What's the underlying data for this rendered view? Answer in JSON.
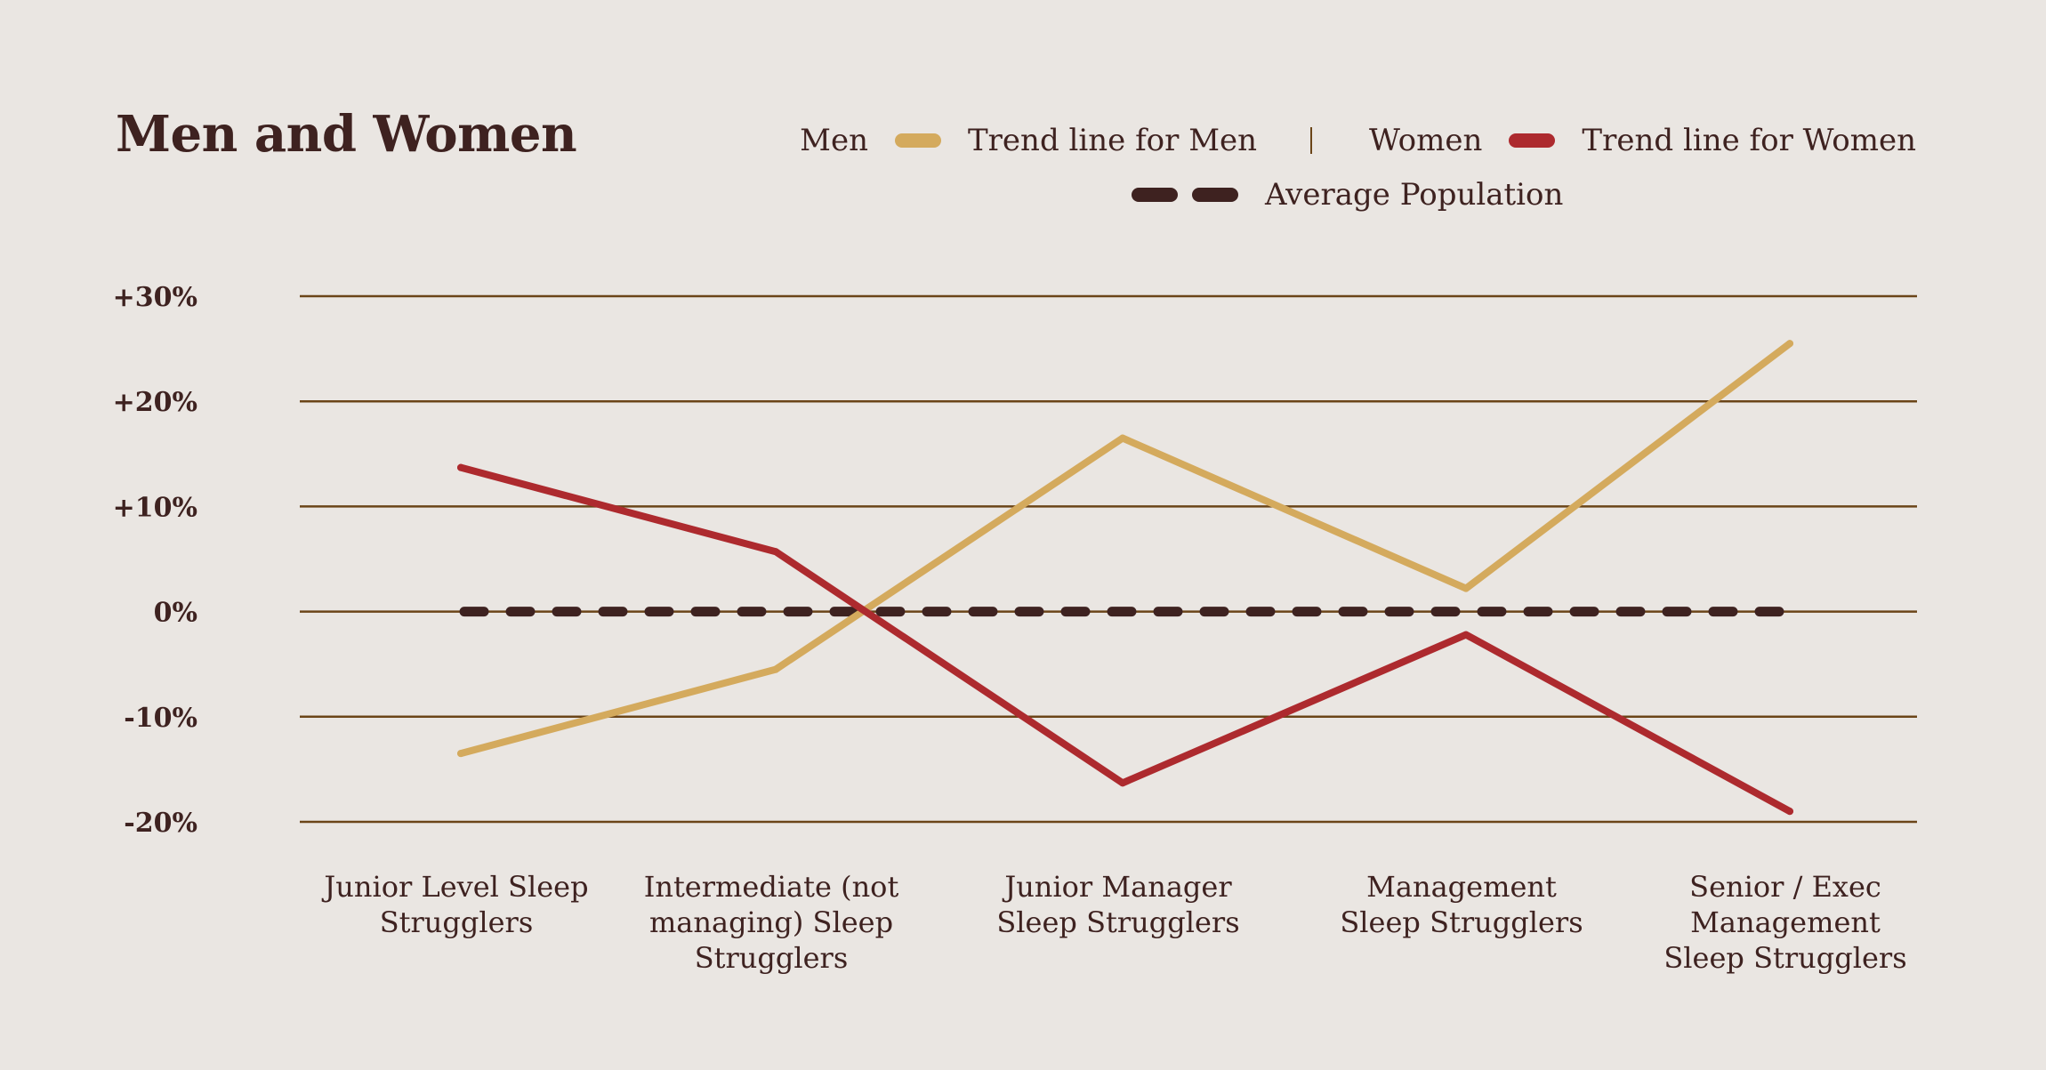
{
  "chart_data": {
    "type": "line",
    "title": "Men and Women",
    "categories": [
      [
        "Junior Level Sleep",
        "Strugglers"
      ],
      [
        "Intermediate (not",
        "managing) Sleep",
        "Strugglers"
      ],
      [
        "Junior Manager",
        "Sleep Strugglers"
      ],
      [
        "Management",
        "Sleep Strugglers"
      ],
      [
        "Senior / Exec",
        "Management",
        "Sleep Strugglers"
      ]
    ],
    "series": [
      {
        "name": "Trend line for Men",
        "values": [
          -13.5,
          -5.5,
          16.5,
          2.2,
          25.5
        ],
        "color": "#D4AA5D"
      },
      {
        "name": "Trend line for Women",
        "values": [
          13.7,
          5.7,
          -16.3,
          -2.2,
          -19.0
        ],
        "color": "#AD2A2E"
      }
    ],
    "average": {
      "name": "Average Population",
      "value": 0,
      "color": "#3E2220"
    },
    "yticks": [
      30,
      20,
      10,
      0,
      -10,
      -20
    ],
    "ytick_labels": [
      "+30%",
      "+20%",
      "+10%",
      "0%",
      "-10%",
      "-20%"
    ],
    "ylim": [
      -20,
      30
    ],
    "grid": true,
    "grid_color": "#6B4518",
    "legend": {
      "position": "top-right",
      "men_label": "Men",
      "separator": "|",
      "women_label": "Women"
    }
  }
}
